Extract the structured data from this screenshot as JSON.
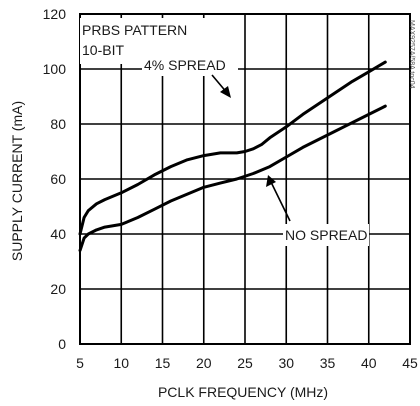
{
  "chart_data": {
    "type": "line",
    "title": "",
    "xlabel": "PCLK FREQUENCY (MHz)",
    "ylabel": "SUPPLY CURRENT (mA)",
    "xlim": [
      5,
      45
    ],
    "ylim": [
      0,
      120
    ],
    "x_ticks": [
      5,
      10,
      15,
      20,
      25,
      30,
      35,
      40,
      45
    ],
    "y_ticks": [
      0,
      20,
      40,
      60,
      80,
      100,
      120
    ],
    "grid": true,
    "legend": "none",
    "annotations": {
      "pattern_line1": "PRBS PATTERN",
      "pattern_line2": "10-BIT",
      "spread_label": "4% SPREAD",
      "no_spread_label": "NO SPREAD",
      "watermark": "MAX9257A/58A toc04"
    },
    "series": [
      {
        "name": "4% SPREAD",
        "x": [
          5,
          5.5,
          6,
          7,
          8,
          10,
          12,
          14,
          16,
          18,
          20,
          22,
          24,
          25,
          26,
          27,
          28,
          30,
          32,
          34,
          36,
          38,
          40,
          42
        ],
        "y": [
          40,
          46,
          48.5,
          51,
          52.5,
          55,
          58,
          61.5,
          64.5,
          67,
          68.5,
          69.5,
          69.5,
          70,
          71,
          72.5,
          75,
          79,
          83.5,
          87.5,
          91.5,
          95.5,
          99,
          102.5
        ]
      },
      {
        "name": "NO SPREAD",
        "x": [
          5,
          5.5,
          6,
          7,
          8,
          10,
          12,
          14,
          16,
          18,
          20,
          22,
          24,
          26,
          28,
          30,
          32,
          34,
          36,
          38,
          40,
          42
        ],
        "y": [
          34,
          38.5,
          40,
          41.5,
          42.5,
          43.5,
          46,
          49,
          52,
          54.5,
          57,
          58.5,
          60,
          62,
          64.5,
          68,
          71.5,
          74.5,
          77.5,
          80.5,
          83.5,
          86.5
        ]
      }
    ]
  }
}
